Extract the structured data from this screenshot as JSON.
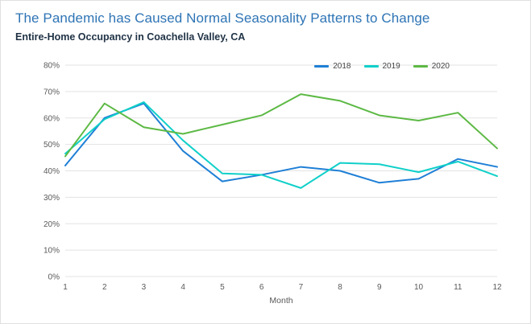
{
  "header": {
    "title": "The Pandemic has Caused Normal Seasonality Patterns to Change",
    "subtitle": "Entire-Home Occupancy in Coachella Valley, CA"
  },
  "chart_data": {
    "type": "line",
    "title": "Entire-Home Occupancy in Coachella Valley, CA",
    "xlabel": "Month",
    "ylabel": "",
    "x": [
      1,
      2,
      3,
      4,
      5,
      6,
      7,
      8,
      9,
      10,
      11,
      12
    ],
    "ylim": [
      0,
      80
    ],
    "yticks": [
      0,
      10,
      20,
      30,
      40,
      50,
      60,
      70,
      80
    ],
    "ytick_labels": [
      "0%",
      "10%",
      "20%",
      "30%",
      "40%",
      "50%",
      "60%",
      "70%",
      "80%"
    ],
    "grid": true,
    "legend_position": "top-right",
    "series": [
      {
        "name": "2018",
        "color": "#1e7fd6",
        "values": [
          42,
          60,
          65.5,
          47.5,
          36,
          38.5,
          41.5,
          40,
          35.5,
          37,
          44.5,
          41.5
        ]
      },
      {
        "name": "2019",
        "color": "#10d0c9",
        "values": [
          46.5,
          59.5,
          66,
          51.5,
          39,
          38.5,
          33.5,
          43,
          42.5,
          39.5,
          43.5,
          38
        ]
      },
      {
        "name": "2020",
        "color": "#5cb944",
        "values": [
          45.5,
          65.5,
          56.5,
          54,
          57.5,
          61,
          69,
          66.5,
          61,
          59,
          62,
          48.5
        ]
      }
    ],
    "colors": {
      "grid": "#e3e3e3",
      "tick_text": "#595959",
      "title": "#2e74b5",
      "subtitle": "#1f3245"
    }
  }
}
